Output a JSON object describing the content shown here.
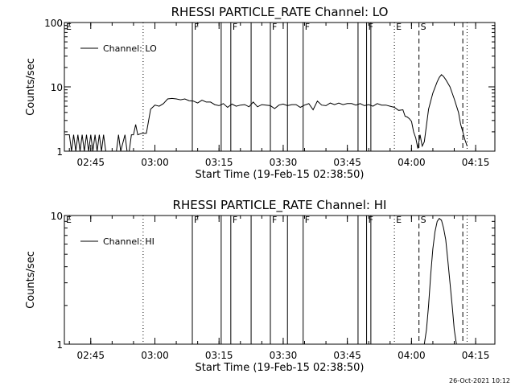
{
  "footer": {
    "date": "26-Oct-2021 10:12"
  },
  "chart_data": [
    {
      "type": "line",
      "title": "RHESSI PARTICLE_RATE Channel: LO",
      "xlabel": "Start Time (19-Feb-15 02:38:50)",
      "ylabel": "Counts/sec",
      "yscale": "log",
      "ylim": [
        1,
        100
      ],
      "xlim": [
        "02:38:50",
        "04:19:30"
      ],
      "xticks": [
        "02:45",
        "03:00",
        "03:15",
        "03:30",
        "03:45",
        "04:00",
        "04:15"
      ],
      "yticks": [
        "1",
        "10",
        "100"
      ],
      "legend": {
        "position": "top-left",
        "entries": [
          "Channel: LO"
        ]
      },
      "series": [
        {
          "name": "Channel: LO",
          "x": [
            "02:39:00",
            "02:40:00",
            "02:40:30",
            "02:41:00",
            "02:41:30",
            "02:42:00",
            "02:42:30",
            "02:43:00",
            "02:43:30",
            "02:44:00",
            "02:44:30",
            "02:45:00",
            "02:45:30",
            "02:46:00",
            "02:46:30",
            "02:47:00",
            "02:47:30",
            "02:48:00",
            "02:48:30",
            "02:49:00",
            "02:49:30",
            "02:50:00",
            "02:50:30",
            "02:51:00",
            "02:51:30",
            "02:52:00",
            "02:53:00",
            "02:53:30",
            "02:54:00",
            "02:54:30",
            "02:55:00",
            "02:55:30",
            "02:56:00",
            "02:57:00",
            "02:57:30",
            "02:58:00",
            "02:59:00",
            "03:00:00",
            "03:01:00",
            "03:02:00",
            "03:03:00",
            "03:04:00",
            "03:05:00",
            "03:06:00",
            "03:07:00",
            "03:08:00",
            "03:09:00",
            "03:10:00",
            "03:11:00",
            "03:12:00",
            "03:13:00",
            "03:14:00",
            "03:15:00",
            "03:16:00",
            "03:17:00",
            "03:18:00",
            "03:19:00",
            "03:20:00",
            "03:21:00",
            "03:22:00",
            "03:23:00",
            "03:24:00",
            "03:25:00",
            "03:26:00",
            "03:27:00",
            "03:28:00",
            "03:29:00",
            "03:30:00",
            "03:31:00",
            "03:32:00",
            "03:33:00",
            "03:34:00",
            "03:35:00",
            "03:36:00",
            "03:37:00",
            "03:38:00",
            "03:39:00",
            "03:40:00",
            "03:41:00",
            "03:42:00",
            "03:43:00",
            "03:44:00",
            "03:45:00",
            "03:46:00",
            "03:47:00",
            "03:48:00",
            "03:49:00",
            "03:50:00",
            "03:51:00",
            "03:52:00",
            "03:53:00",
            "03:54:00",
            "03:55:00",
            "03:56:00",
            "03:57:00",
            "03:58:00",
            "03:58:30",
            "03:59:00",
            "03:59:30",
            "04:00:00",
            "04:00:30",
            "04:01:00",
            "04:01:30",
            "04:02:00",
            "04:02:30",
            "04:03:00",
            "04:04:00",
            "04:05:00",
            "04:06:00",
            "04:06:30",
            "04:07:00",
            "04:07:30",
            "04:08:00",
            "04:09:00",
            "04:10:00",
            "04:11:00",
            "04:11:30",
            "04:12:00",
            "04:12:30",
            "04:13:00"
          ],
          "y": [
            1.8,
            1.8,
            1,
            1.8,
            1,
            1.8,
            1,
            1.8,
            1,
            1.8,
            1,
            1.8,
            1,
            1.8,
            1,
            1.8,
            1,
            1.8,
            1,
            1,
            1,
            1,
            1,
            1,
            1.8,
            1,
            1.8,
            1,
            1,
            1.8,
            1.8,
            2.6,
            1.8,
            1.9,
            1.9,
            1.9,
            4.5,
            5.2,
            5,
            5.5,
            6.5,
            6.6,
            6.5,
            6.3,
            6.5,
            6.1,
            6,
            5.6,
            6.2,
            5.8,
            5.8,
            5.3,
            5.1,
            5.5,
            4.8,
            5.4,
            5,
            5.2,
            5.3,
            4.9,
            5.8,
            4.9,
            5.3,
            5.2,
            5.1,
            4.6,
            5.2,
            5.4,
            5.1,
            5.3,
            5.3,
            4.8,
            5.2,
            5.5,
            4.4,
            6,
            5.2,
            5.1,
            5.6,
            5.3,
            5.6,
            5.3,
            5.5,
            5.5,
            5.2,
            5.5,
            5.1,
            5.3,
            5,
            5.5,
            5.2,
            5.2,
            5,
            4.8,
            4.3,
            4.4,
            3.5,
            3.4,
            3.2,
            2.9,
            2,
            1.6,
            1.1,
            1.8,
            1.2,
            1.4,
            4.5,
            8,
            12,
            14,
            15.5,
            14.5,
            13,
            10,
            6.5,
            4,
            2.6,
            2,
            1.5,
            1.2
          ]
        }
      ],
      "vlines": [
        {
          "time": "02:38:50",
          "style": "solid",
          "label": "E"
        },
        {
          "time": "02:57:15",
          "style": "dotted",
          "label": ""
        },
        {
          "time": "03:08:45",
          "style": "solid",
          "label": "F"
        },
        {
          "time": "03:15:30",
          "style": "solid",
          "label": ""
        },
        {
          "time": "03:17:45",
          "style": "solid",
          "label": "F"
        },
        {
          "time": "03:22:30",
          "style": "solid",
          "label": ""
        },
        {
          "time": "03:27:00",
          "style": "solid",
          "label": "F"
        },
        {
          "time": "03:31:00",
          "style": "solid",
          "label": ""
        },
        {
          "time": "03:34:40",
          "style": "solid",
          "label": "F"
        },
        {
          "time": "03:47:30",
          "style": "solid",
          "label": ""
        },
        {
          "time": "03:49:30",
          "style": "solid",
          "label": "F"
        },
        {
          "time": "03:50:30",
          "style": "solid",
          "label": ""
        },
        {
          "time": "03:56:00",
          "style": "dotted",
          "label": "E"
        },
        {
          "time": "04:01:45",
          "style": "dashed",
          "label": "S"
        },
        {
          "time": "04:12:00",
          "style": "dashed",
          "label": ""
        },
        {
          "time": "04:13:00",
          "style": "dotted",
          "label": ""
        }
      ]
    },
    {
      "type": "line",
      "title": "RHESSI PARTICLE_RATE Channel: HI",
      "xlabel": "Start Time (19-Feb-15 02:38:50)",
      "ylabel": "Counts/sec",
      "yscale": "log",
      "ylim": [
        1,
        10
      ],
      "xlim": [
        "02:38:50",
        "04:19:30"
      ],
      "xticks": [
        "02:45",
        "03:00",
        "03:15",
        "03:30",
        "03:45",
        "04:00",
        "04:15"
      ],
      "yticks": [
        "1",
        "10"
      ],
      "legend": {
        "position": "top-left",
        "entries": [
          "Channel: HI"
        ]
      },
      "series": [
        {
          "name": "Channel: HI",
          "x": [
            "04:03:00",
            "04:03:30",
            "04:04:00",
            "04:04:30",
            "04:05:00",
            "04:05:30",
            "04:06:00",
            "04:06:30",
            "04:07:00",
            "04:07:30",
            "04:08:00",
            "04:08:30",
            "04:09:00",
            "04:09:30",
            "04:10:00",
            "04:10:30"
          ],
          "y": [
            1,
            1.3,
            2,
            3.5,
            5.5,
            7.5,
            9,
            9.5,
            9.2,
            8,
            6.5,
            4.5,
            3,
            2,
            1.3,
            1
          ]
        }
      ],
      "vlines": [
        {
          "time": "02:38:50",
          "style": "solid",
          "label": "E"
        },
        {
          "time": "02:57:15",
          "style": "dotted",
          "label": ""
        },
        {
          "time": "03:08:45",
          "style": "solid",
          "label": "F"
        },
        {
          "time": "03:15:30",
          "style": "solid",
          "label": ""
        },
        {
          "time": "03:17:45",
          "style": "solid",
          "label": "F"
        },
        {
          "time": "03:22:30",
          "style": "solid",
          "label": ""
        },
        {
          "time": "03:27:00",
          "style": "solid",
          "label": "F"
        },
        {
          "time": "03:31:00",
          "style": "solid",
          "label": ""
        },
        {
          "time": "03:34:40",
          "style": "solid",
          "label": "F"
        },
        {
          "time": "03:47:30",
          "style": "solid",
          "label": ""
        },
        {
          "time": "03:49:30",
          "style": "solid",
          "label": "F"
        },
        {
          "time": "03:50:30",
          "style": "solid",
          "label": ""
        },
        {
          "time": "03:56:00",
          "style": "dotted",
          "label": "E"
        },
        {
          "time": "04:01:45",
          "style": "dashed",
          "label": "S"
        },
        {
          "time": "04:12:00",
          "style": "dashed",
          "label": ""
        },
        {
          "time": "04:13:00",
          "style": "dotted",
          "label": ""
        }
      ]
    }
  ]
}
